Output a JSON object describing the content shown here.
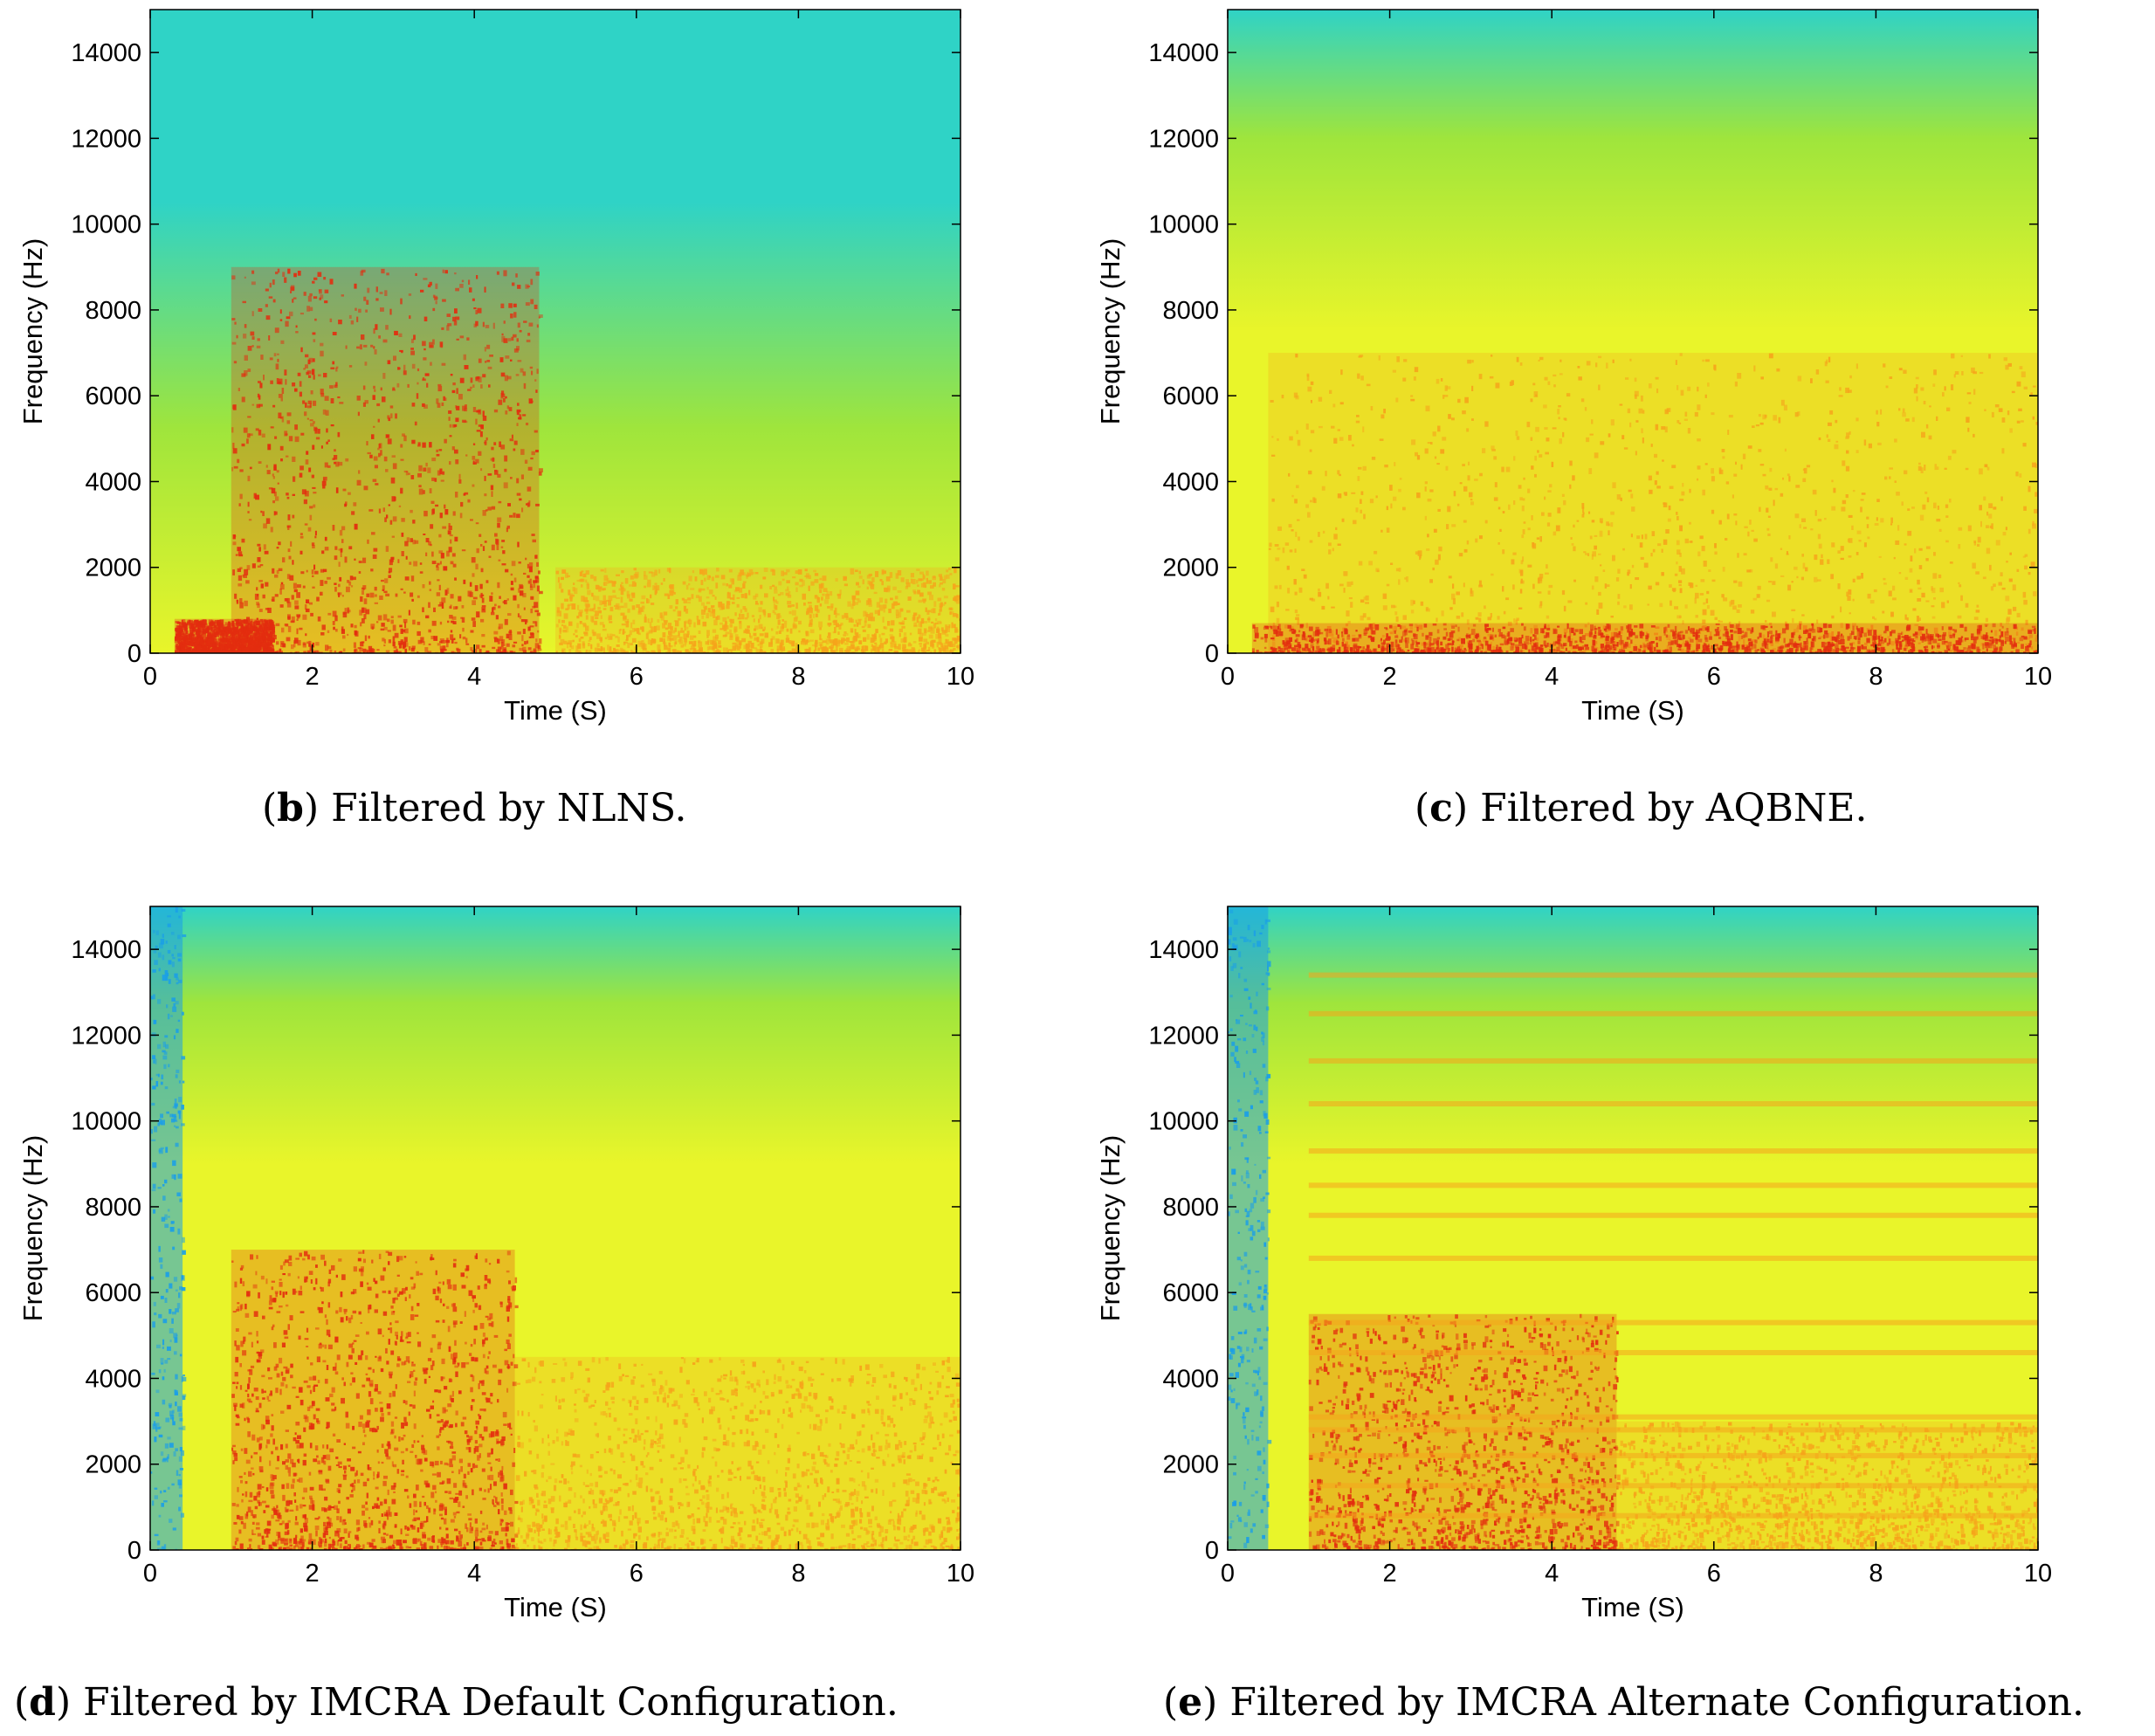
{
  "colors": {
    "low": "#2fd3c6",
    "mid_low": "#9fe53c",
    "mid": "#e9f52a",
    "mid_high": "#f6a41b",
    "high": "#e32d0f",
    "deep_low": "#1a9ee8"
  },
  "chart_data": [
    {
      "type": "heatmap",
      "panel_id": "b",
      "caption_letter": "b",
      "caption_text": "Filtered by NLNS.",
      "xlabel": "Time (S)",
      "ylabel": "Frequency (Hz)",
      "xlim": [
        0,
        10
      ],
      "ylim": [
        0,
        15000
      ],
      "xticks": [
        0,
        2,
        4,
        6,
        8,
        10
      ],
      "yticks": [
        0,
        2000,
        4000,
        6000,
        8000,
        10000,
        12000,
        14000
      ],
      "colormap": "jet",
      "energy_regions": [
        {
          "t_start": 1.0,
          "t_end": 4.8,
          "f_max": 9000,
          "level": "high"
        },
        {
          "t_start": 0.3,
          "t_end": 1.5,
          "f_max": 800,
          "level": "high"
        },
        {
          "t_start": 5.0,
          "t_end": 10.0,
          "f_max": 2000,
          "level": "mid_high"
        }
      ]
    },
    {
      "type": "heatmap",
      "panel_id": "c",
      "caption_letter": "c",
      "caption_text": "Filtered by AQBNE.",
      "xlabel": "Time (S)",
      "ylabel": "Frequency (Hz)",
      "xlim": [
        0,
        10
      ],
      "ylim": [
        0,
        15000
      ],
      "xticks": [
        0,
        2,
        4,
        6,
        8,
        10
      ],
      "yticks": [
        0,
        2000,
        4000,
        6000,
        8000,
        10000,
        12000,
        14000
      ],
      "colormap": "jet",
      "energy_regions": [
        {
          "t_start": 0.5,
          "t_end": 10.0,
          "f_max": 7000,
          "level": "mid_high"
        },
        {
          "t_start": 0.3,
          "t_end": 10.0,
          "f_max": 700,
          "level": "high"
        }
      ]
    },
    {
      "type": "heatmap",
      "panel_id": "d",
      "caption_letter": "d",
      "caption_text": "Filtered by IMCRA Default Configuration.",
      "xlabel": "Time (S)",
      "ylabel": "Frequency (Hz)",
      "xlim": [
        0,
        10
      ],
      "ylim": [
        0,
        15000
      ],
      "xticks": [
        0,
        2,
        4,
        6,
        8,
        10
      ],
      "yticks": [
        0,
        2000,
        4000,
        6000,
        8000,
        10000,
        12000,
        14000
      ],
      "colormap": "jet",
      "energy_regions": [
        {
          "t_start": 1.0,
          "t_end": 4.5,
          "f_max": 7000,
          "level": "high"
        },
        {
          "t_start": 4.5,
          "t_end": 10.0,
          "f_max": 4500,
          "level": "mid_high"
        },
        {
          "t_start": 0.0,
          "t_end": 0.4,
          "f_max": 15000,
          "level": "deep_low"
        }
      ]
    },
    {
      "type": "heatmap",
      "panel_id": "e",
      "caption_letter": "e",
      "caption_text": "Filtered by IMCRA Alternate Configuration.",
      "xlabel": "Time (S)",
      "ylabel": "Frequency (Hz)",
      "xlim": [
        0,
        10
      ],
      "ylim": [
        0,
        15000
      ],
      "xticks": [
        0,
        2,
        4,
        6,
        8,
        10
      ],
      "yticks": [
        0,
        2000,
        4000,
        6000,
        8000,
        10000,
        12000,
        14000
      ],
      "colormap": "jet",
      "energy_regions": [
        {
          "t_start": 1.0,
          "t_end": 4.8,
          "f_max": 5500,
          "level": "high"
        },
        {
          "t_start": 4.8,
          "t_end": 10.0,
          "f_max": 3000,
          "level": "mid_high"
        },
        {
          "t_start": 0.0,
          "t_end": 0.5,
          "f_max": 15000,
          "level": "deep_low"
        }
      ],
      "horizontal_bands_hz": [
        800,
        1500,
        2200,
        2800,
        3100,
        4600,
        5300,
        6800,
        7800,
        8500,
        9300,
        10400,
        11400,
        12500,
        13400
      ]
    }
  ]
}
